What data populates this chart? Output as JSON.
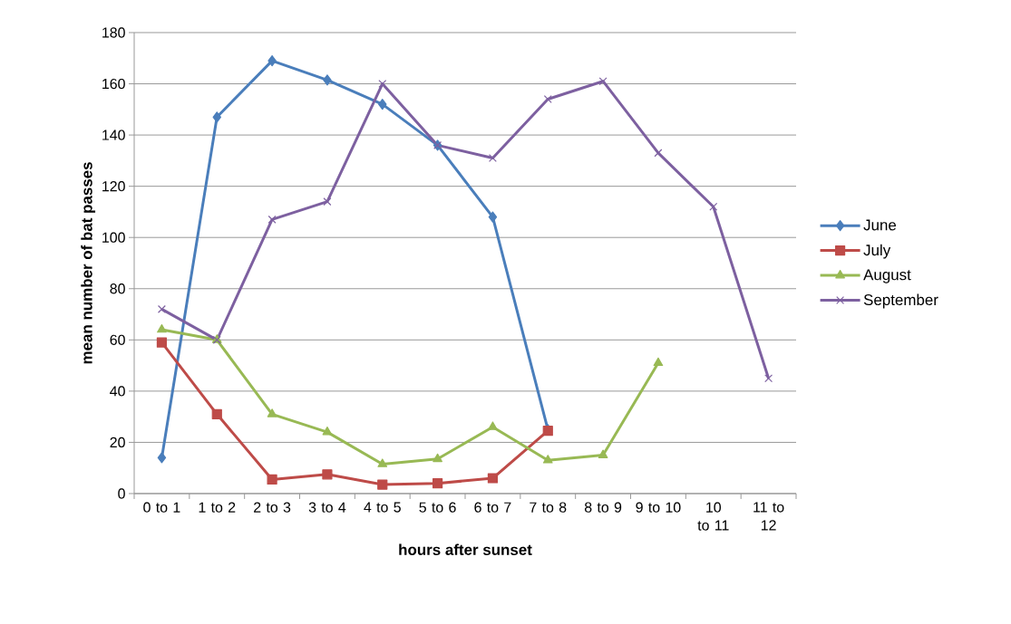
{
  "chart_data": {
    "type": "line",
    "xlabel": "hours after sunset",
    "ylabel": "mean number of bat passes",
    "categories": [
      "0 to 1",
      "1 to 2",
      "2 to 3",
      "3 to 4",
      "4 to 5",
      "5 to 6",
      "6 to 7",
      "7 to 8",
      "8 to 9",
      "9 to 10",
      "10 to 11",
      "11 to 12"
    ],
    "series": [
      {
        "name": "June",
        "color": "#4a7ebb",
        "marker": "diamond",
        "values": [
          14,
          147,
          169,
          161.5,
          152,
          136,
          108,
          25,
          null,
          null,
          null,
          null
        ]
      },
      {
        "name": "July",
        "color": "#be4b48",
        "marker": "square",
        "values": [
          59,
          31,
          5.5,
          7.5,
          3.5,
          4,
          6,
          24.5,
          null,
          null,
          null,
          null
        ]
      },
      {
        "name": "August",
        "color": "#98b954",
        "marker": "triangle",
        "values": [
          64,
          60,
          31,
          24,
          11.5,
          13.5,
          26,
          13,
          15,
          51,
          null,
          null
        ]
      },
      {
        "name": "September",
        "color": "#7d60a0",
        "marker": "cross",
        "values": [
          72,
          60,
          107,
          114,
          160,
          136,
          131,
          154,
          161,
          133,
          112,
          45
        ]
      }
    ],
    "ylim": [
      0,
      180
    ],
    "yticks": [
      0,
      20,
      40,
      60,
      80,
      100,
      120,
      140,
      160,
      180
    ],
    "grid": "y",
    "legend": "right",
    "line_style": "solid"
  }
}
